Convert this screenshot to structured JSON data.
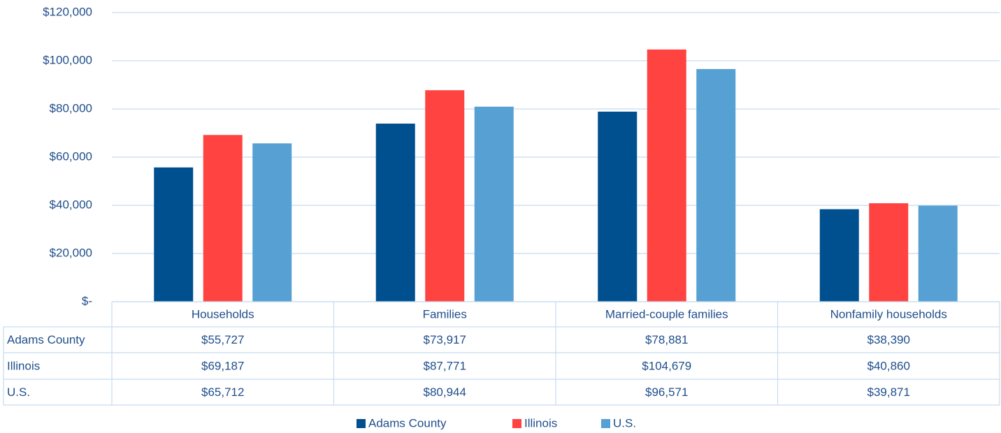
{
  "chart_data": {
    "type": "bar",
    "categories": [
      "Households",
      "Families",
      "Married-couple families",
      "Nonfamily households"
    ],
    "series": [
      {
        "name": "Adams County",
        "color": "#00508f",
        "values": [
          55727,
          73917,
          78881,
          38390
        ],
        "value_labels": [
          "$55,727",
          "$73,917",
          "$78,881",
          "$38,390"
        ]
      },
      {
        "name": "Illinois",
        "color": "#ff4340",
        "values": [
          69187,
          87771,
          104679,
          40860
        ],
        "value_labels": [
          "$69,187",
          "$87,771",
          "$104,679",
          "$40,860"
        ]
      },
      {
        "name": "U.S.",
        "color": "#56a0d3",
        "values": [
          65712,
          80944,
          96571,
          39871
        ],
        "value_labels": [
          "$65,712",
          "$80,944",
          "$96,571",
          "$39,871"
        ]
      }
    ],
    "ylim": [
      0,
      120000
    ],
    "yticks": [
      {
        "value": 0,
        "label": "$-"
      },
      {
        "value": 20000,
        "label": "$20,000"
      },
      {
        "value": 40000,
        "label": "$40,000"
      },
      {
        "value": 60000,
        "label": "$60,000"
      },
      {
        "value": 80000,
        "label": "$80,000"
      },
      {
        "value": 100000,
        "label": "$100,000"
      },
      {
        "value": 120000,
        "label": "$120,000"
      }
    ],
    "grid": true
  }
}
